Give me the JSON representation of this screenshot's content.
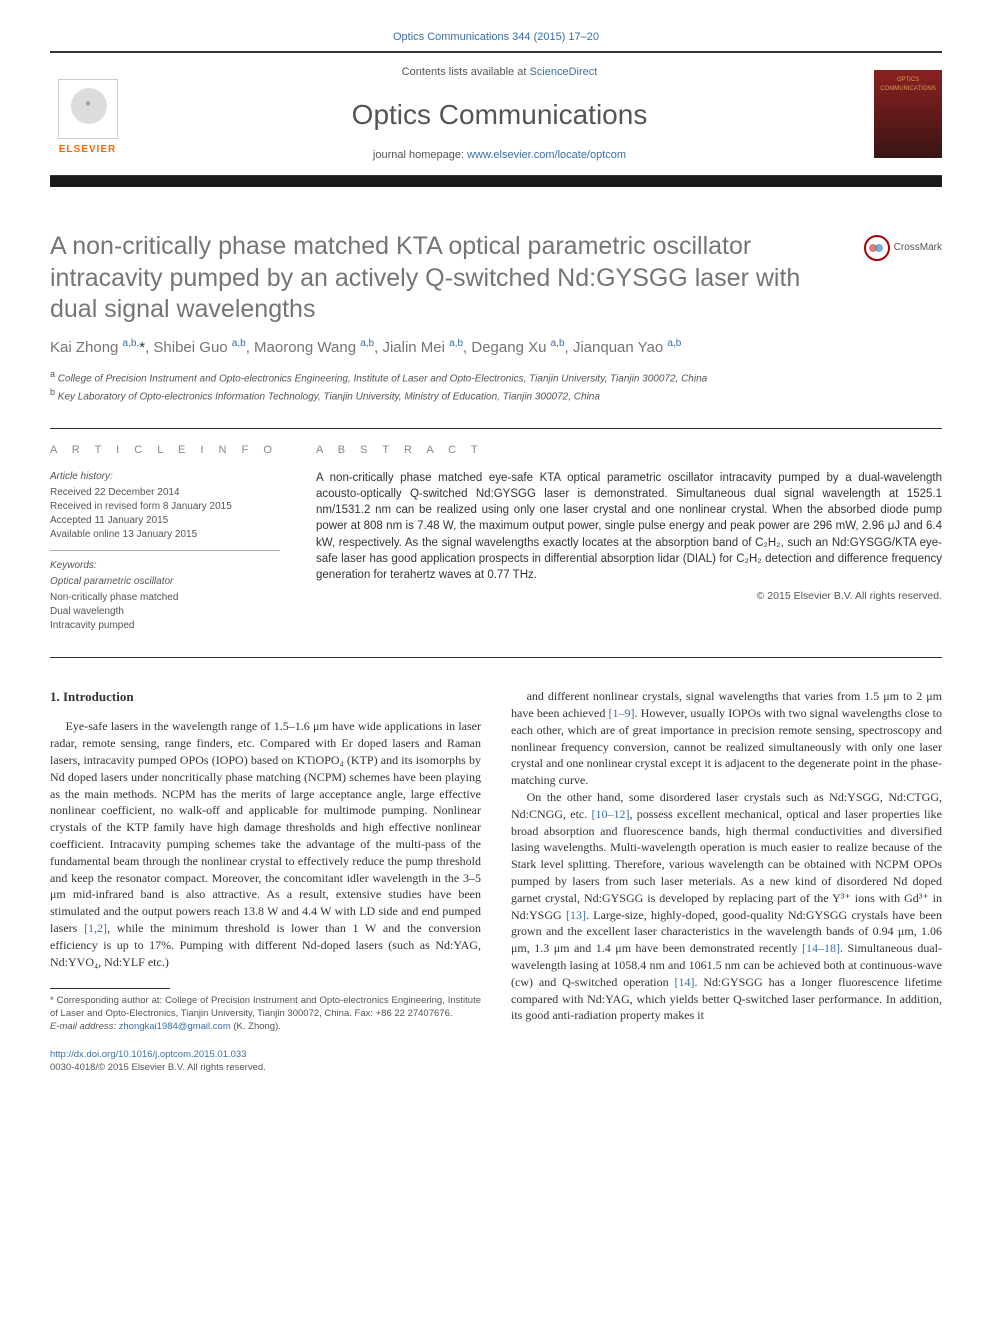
{
  "top_citation": "Optics Communications 344 (2015) 17–20",
  "header": {
    "contents_prefix": "Contents lists available at ",
    "contents_link": "ScienceDirect",
    "journal_name": "Optics Communications",
    "homepage_prefix": "journal homepage: ",
    "homepage_link": "www.elsevier.com/locate/optcom",
    "elsevier_label": "ELSEVIER",
    "cover_text": "OPTICS COMMUNICATIONS"
  },
  "crossmark_label": "CrossMark",
  "title": "A non-critically phase matched KTA optical parametric oscillator intracavity pumped by an actively Q-switched Nd:GYSGG laser with dual signal wavelengths",
  "authors_html": "Kai Zhong <sup>a,b,</sup><span class='corr-star'>*</span>, Shibei Guo <sup>a,b</sup>, Maorong Wang <sup>a,b</sup>, Jialin Mei <sup>a,b</sup>, Degang Xu <sup>a,b</sup>, Jianquan Yao <sup>a,b</sup>",
  "affiliations": [
    "a College of Precision Instrument and Opto-electronics Engineering, Institute of Laser and Opto-Electronics, Tianjin University, Tianjin 300072, China",
    "b Key Laboratory of Opto-electronics Information Technology, Tianjin University, Ministry of Education, Tianjin 300072, China"
  ],
  "article_info_heading": "A R T I C L E  I N F O",
  "abstract_heading": "A B S T R A C T",
  "history": {
    "label": "Article history:",
    "items": [
      "Received 22 December 2014",
      "Received in revised form 8 January 2015",
      "Accepted 11 January 2015",
      "Available online 13 January 2015"
    ]
  },
  "keywords": {
    "label": "Keywords:",
    "items": [
      "Optical parametric oscillator",
      "Non-critically phase matched",
      "Dual wavelength",
      "Intracavity pumped"
    ]
  },
  "abstract_text": "A non-critically phase matched eye-safe KTA optical parametric oscillator intracavity pumped by a dual-wavelength acousto-optically Q-switched Nd:GYSGG laser is demonstrated. Simultaneous dual signal wavelength at 1525.1 nm/1531.2 nm can be realized using only one laser crystal and one nonlinear crystal. When the absorbed diode pump power at 808 nm is 7.48 W, the maximum output power, single pulse energy and peak power are 296 mW, 2.96 μJ and 6.4 kW, respectively. As the signal wavelengths exactly locates at the absorption band of C₂H₂, such an Nd:GYSGG/KTA eye-safe laser has good application prospects in differential absorption lidar (DIAL) for C₂H₂ detection and difference frequency generation for terahertz waves at 0.77 THz.",
  "copyright": "© 2015 Elsevier B.V. All rights reserved.",
  "section1": {
    "heading": "1.  Introduction",
    "para1": "Eye-safe lasers in the wavelength range of 1.5–1.6 μm have wide applications in laser radar, remote sensing, range finders, etc. Compared with Er doped lasers and Raman lasers, intracavity pumped OPOs (IOPO) based on KTiOPO₄ (KTP) and its isomorphs by Nd doped lasers under noncritically phase matching (NCPM) schemes have been playing as the main methods. NCPM has the merits of large acceptance angle, large effective nonlinear coefficient, no walk-off and applicable for multimode pumping. Nonlinear crystals of the KTP family have high damage thresholds and high effective nonlinear coefficient. Intracavity pumping schemes take the advantage of the multi-pass of the fundamental beam through the nonlinear crystal to effectively reduce the pump threshold and keep the resonator compact. Moreover, the concomitant idler wavelength in the 3–5 μm mid-infrared band is also attractive. As a result, extensive studies have been stimulated and the output powers reach 13.8 W and 4.4 W with LD side and end pumped lasers ",
    "ref1": "[1,2]",
    "para1b": ", while the minimum threshold is lower than 1 W and the conversion efficiency is up to 17%. Pumping with different Nd-doped lasers (such as Nd:YAG, Nd:YVO₄, Nd:YLF etc.)",
    "para2a": "and different nonlinear crystals, signal wavelengths that varies from 1.5 μm to 2 μm have been achieved ",
    "ref2": "[1–9]",
    "para2b": ". However, usually IOPOs with two signal wavelengths close to each other, which are of great importance in precision remote sensing, spectroscopy and nonlinear frequency conversion, cannot be realized simultaneously with only one laser crystal and one nonlinear crystal except it is adjacent to the degenerate point in the phase-matching curve.",
    "para3a": "On the other hand, some disordered laser crystals such as Nd:YSGG, Nd:CTGG, Nd:CNGG, etc. ",
    "ref3": "[10–12]",
    "para3b": ", possess excellent mechanical, optical and laser properties like broad absorption and fluorescence bands, high thermal conductivities and diversified lasing wavelengths. Multi-wavelength operation is much easier to realize because of the Stark level splitting. Therefore, various wavelength can be obtained with NCPM OPOs pumped by lasers from such laser meterials. As a new kind of disordered Nd doped garnet crystal, Nd:GYSGG is developed by replacing part of the Y³⁺ ions with Gd³⁺ in Nd:YSGG ",
    "ref4": "[13]",
    "para3c": ". Large-size, highly-doped, good-quality Nd:GYSGG crystals have been grown and the excellent laser characteristics in the wavelength bands of 0.94 μm, 1.06 μm, 1.3 μm and 1.4 μm have been demonstrated recently ",
    "ref5": "[14–18]",
    "para3d": ". Simultaneous dual-wavelength lasing at 1058.4 nm and 1061.5 nm can be achieved both at continuous-wave (cw) and Q-switched operation ",
    "ref6": "[14]",
    "para3e": ". Nd:GYSGG has a longer fluorescence lifetime compared with Nd:YAG, which yields better Q-switched laser performance. In addition, its good anti-radiation property makes it"
  },
  "footnote": {
    "corr": "* Corresponding author at: College of Precision Instrument and Opto-electronics Engineering, Institute of Laser and Opto-Electronics, Tianjin University, Tianjin 300072, China. Fax: +86 22 27407676.",
    "email_label": "E-mail address: ",
    "email": "zhongkai1984@gmail.com",
    "email_suffix": " (K. Zhong)."
  },
  "doi": {
    "link": "http://dx.doi.org/10.1016/j.optcom.2015.01.033",
    "issn_line": "0030-4018/© 2015 Elsevier B.V. All rights reserved."
  }
}
